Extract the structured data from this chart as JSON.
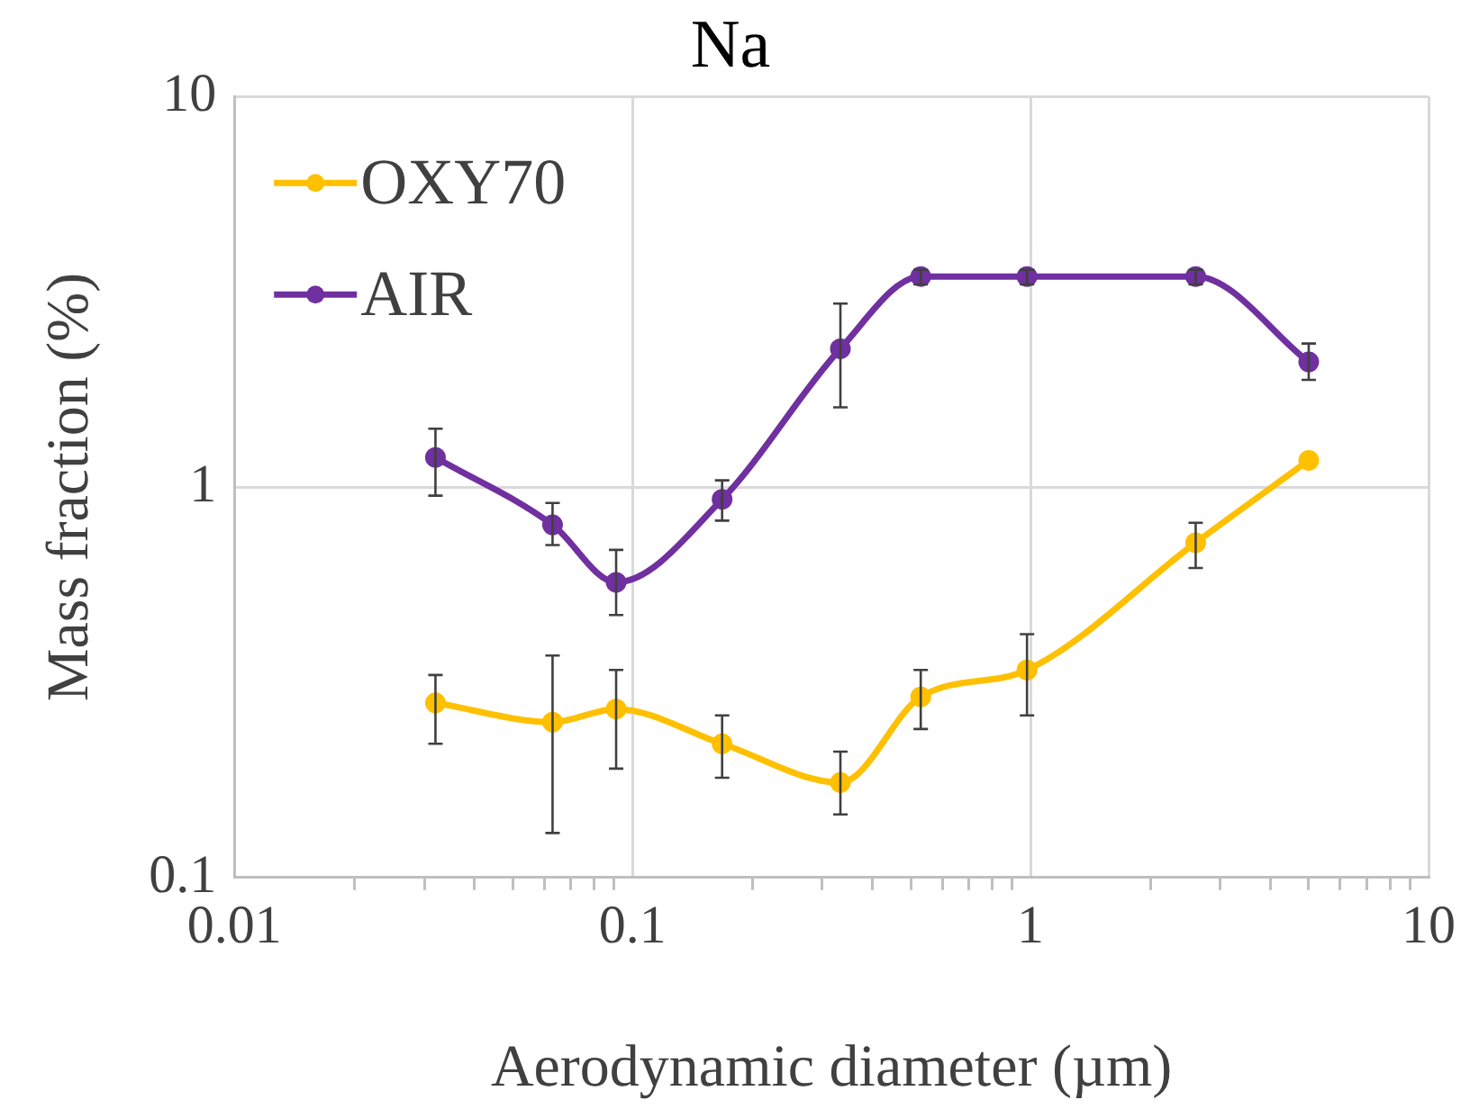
{
  "chart_data": {
    "type": "line",
    "title": "Na",
    "xlabel": "Aerodynamic diameter (µm)",
    "ylabel": "Mass fraction (%)",
    "log": "xy",
    "grid": true,
    "legend": "top left",
    "marker": "circle",
    "line_style": "solid",
    "xlim": [
      0.01,
      10
    ],
    "xticks": [
      0.01,
      {
        "value": 0.02,
        "label": null
      },
      {
        "value": 0.03,
        "label": null
      },
      {
        "value": 0.04,
        "label": null
      },
      {
        "value": 0.05,
        "label": null
      },
      {
        "value": 0.06,
        "label": null
      },
      {
        "value": 0.07,
        "label": null
      },
      {
        "value": 0.08,
        "label": null
      },
      {
        "value": 0.09,
        "label": null
      },
      0.1,
      {
        "value": 0.2,
        "label": null
      },
      {
        "value": 0.3,
        "label": null
      },
      {
        "value": 0.4,
        "label": null
      },
      {
        "value": 0.5,
        "label": null
      },
      {
        "value": 0.6,
        "label": null
      },
      {
        "value": 0.7,
        "label": null
      },
      {
        "value": 0.8,
        "label": null
      },
      {
        "value": 0.9,
        "label": null
      },
      1,
      {
        "value": 2,
        "label": null
      },
      {
        "value": 3,
        "label": null
      },
      {
        "value": 4,
        "label": null
      },
      {
        "value": 5,
        "label": null
      },
      {
        "value": 6,
        "label": null
      },
      {
        "value": 7,
        "label": null
      },
      {
        "value": 8,
        "label": null
      },
      {
        "value": 9,
        "label": null
      },
      10
    ],
    "ylim": [
      0.1,
      10
    ],
    "yticks": [
      0.1,
      1,
      10
    ],
    "x": [
      0.032,
      0.063,
      0.091,
      0.168,
      0.333,
      0.53,
      0.98,
      2.6,
      5.0
    ],
    "series": [
      {
        "name": "OXY70",
        "color": "#ffc000",
        "values": [
          0.28,
          0.25,
          0.27,
          0.22,
          0.175,
          0.29,
          0.34,
          0.72,
          1.17
        ],
        "errors": [
          [
            0.22,
            0.33
          ],
          [
            0.13,
            0.37
          ],
          [
            0.19,
            0.34
          ],
          [
            0.18,
            0.26
          ],
          [
            0.145,
            0.21
          ],
          [
            0.24,
            0.34
          ],
          [
            0.26,
            0.42
          ],
          [
            0.62,
            0.81
          ],
          null
        ]
      },
      {
        "name": "AIR",
        "color": "#7030a0",
        "values": [
          1.19,
          0.8,
          0.57,
          0.93,
          2.26,
          3.46,
          3.46,
          3.46,
          2.09
        ],
        "errors": [
          [
            0.95,
            1.41
          ],
          [
            0.71,
            0.91
          ],
          [
            0.47,
            0.69
          ],
          [
            0.82,
            1.04
          ],
          [
            1.6,
            2.95
          ],
          [
            3.3,
            3.6
          ],
          [
            3.3,
            3.6
          ],
          [
            3.3,
            3.6
          ],
          [
            1.88,
            2.33
          ]
        ]
      }
    ]
  }
}
